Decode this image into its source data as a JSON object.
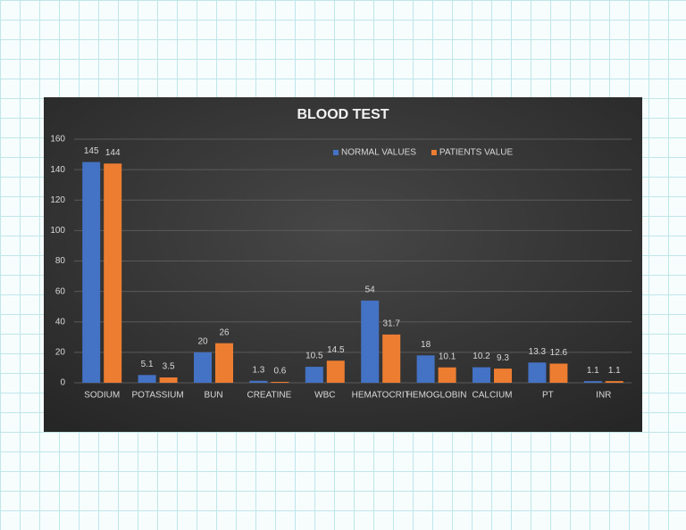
{
  "chart_data": {
    "type": "bar",
    "title": "BLOOD TEST",
    "categories": [
      "SODIUM",
      "POTASSIUM",
      "BUN",
      "CREATINE",
      "WBC",
      "HEMATOCRIT",
      "HEMOGLOBIN",
      "CALCIUM",
      "PT",
      "INR"
    ],
    "series": [
      {
        "name": "NORMAL VALUES",
        "color": "#4472c4",
        "values": [
          145,
          5.1,
          20,
          1.3,
          10.5,
          54,
          18,
          10.2,
          13.3,
          1.1
        ]
      },
      {
        "name": "PATIENTS VALUE",
        "color": "#ed7d31",
        "values": [
          144,
          3.5,
          26,
          0.6,
          14.5,
          31.7,
          10.1,
          9.3,
          12.6,
          1.1
        ]
      }
    ],
    "ylim": [
      0,
      160
    ],
    "yticks": [
      0,
      20,
      40,
      60,
      80,
      100,
      120,
      140,
      160
    ],
    "grid": true,
    "legend": "top-right"
  }
}
